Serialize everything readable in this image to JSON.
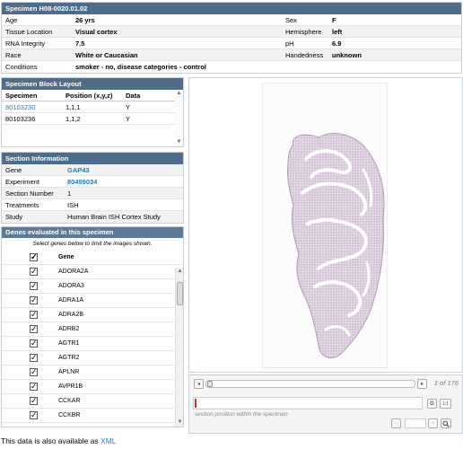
{
  "specimen": {
    "title": "Specimen H08-0020.01.02",
    "rows": [
      {
        "l1": "Age",
        "v1": "26 yrs",
        "l2": "Sex",
        "v2": "F"
      },
      {
        "l1": "Tissue Location",
        "v1": "Visual cortex",
        "l2": "Hemisphere",
        "v2": "left"
      },
      {
        "l1": "RNA Integrity",
        "v1": "7.5",
        "l2": "pH",
        "v2": "6.9"
      },
      {
        "l1": "Race",
        "v1": "White or Caucasian",
        "l2": "Handedness",
        "v2": "unknown"
      },
      {
        "l1": "Conditions",
        "v1": "smoker - no, disease categories - control",
        "l2": "",
        "v2": ""
      }
    ]
  },
  "block_layout": {
    "title": "Specimen Block Layout",
    "headers": {
      "specimen": "Specimen",
      "position": "Position (x,y,z)",
      "data": "Data"
    },
    "rows": [
      {
        "specimen": "80103230",
        "position": "1,1,1",
        "data": "Y"
      },
      {
        "specimen": "80103236",
        "position": "1,1,2",
        "data": "Y"
      }
    ]
  },
  "section_info": {
    "title": "Section Information",
    "rows": [
      {
        "label": "Gene",
        "value": "GAP43"
      },
      {
        "label": "Experiment",
        "value": "80499034"
      },
      {
        "label": "Section Number",
        "value": "1"
      },
      {
        "label": "Treatments",
        "value": "ISH"
      },
      {
        "label": "Study",
        "value": "Human Brain ISH Cortex Study"
      }
    ]
  },
  "genes": {
    "title": "Genes evaluated in this specimen",
    "instruction": "Select genes below to limit the images shown.",
    "header": "Gene",
    "items": [
      "ADORA2A",
      "ADORA3",
      "ADRA1A",
      "ADRA2B",
      "ADRB2",
      "AGTR1",
      "AGTR2",
      "APLNR",
      "AVPR1B",
      "CCKAR",
      "CCKBR"
    ]
  },
  "viewer": {
    "page_indicator": "1 of 176",
    "section_position_label": "section position within the specimen",
    "zoom_value": "",
    "buttons": {
      "g": "G",
      "ratio": "1:1",
      "minus": "−",
      "plus": "+"
    }
  },
  "footer": {
    "prefix": "This data is also available as ",
    "link": "XML"
  },
  "colors": {
    "header": "#4f6c8a",
    "link": "#2a7ab0",
    "tissue": "#bfa8c0"
  }
}
